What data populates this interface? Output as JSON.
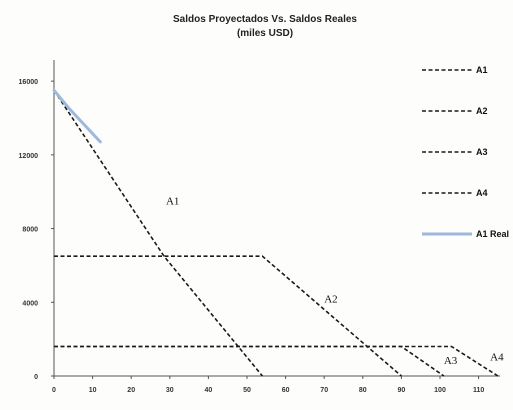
{
  "chart_data": {
    "type": "line",
    "title": "Saldos Proyectados Vs. Saldos Reales",
    "subtitle": "(miles USD)",
    "xlabel": "",
    "ylabel": "",
    "xlim": [
      0,
      120
    ],
    "ylim": [
      0,
      17500
    ],
    "x_ticks": [
      "0",
      "10",
      "20",
      "30",
      "40",
      "50",
      "60",
      "70",
      "80",
      "90",
      "100",
      "110"
    ],
    "y_ticks": [
      {
        "value": 0,
        "label": "0"
      },
      {
        "value": 4000,
        "label": "4000"
      },
      {
        "value": 8000,
        "label": "8000"
      },
      {
        "value": 12000,
        "label": "12000"
      },
      {
        "value": 16000,
        "label": "16000"
      }
    ],
    "grid": false,
    "legend_position": "right",
    "series": [
      {
        "name": "A1",
        "color": "#1a1a1a",
        "style": "dashed",
        "x": [
          0,
          28.5,
          54
        ],
        "y": [
          15500,
          6500,
          0
        ]
      },
      {
        "name": "A2",
        "color": "#1a1a1a",
        "style": "dashed",
        "x": [
          0,
          54,
          90
        ],
        "y": [
          6500,
          6500,
          0
        ]
      },
      {
        "name": "A3",
        "color": "#1a1a1a",
        "style": "dashed",
        "x": [
          0,
          90,
          101
        ],
        "y": [
          1600,
          1600,
          0
        ]
      },
      {
        "name": "A4",
        "color": "#1a1a1a",
        "style": "dashed",
        "x": [
          0,
          103,
          115
        ],
        "y": [
          1600,
          1600,
          0
        ]
      },
      {
        "name": "A1 Real",
        "color": "#9fb8dd",
        "style": "solid",
        "x": [
          0,
          4,
          8,
          12
        ],
        "y": [
          15500,
          14500,
          13600,
          12700
        ]
      }
    ],
    "annotations": [
      {
        "text": "A1",
        "x": 29,
        "y": 9300
      },
      {
        "text": "A2",
        "x": 70,
        "y": 4000
      },
      {
        "text": "A3",
        "x": 101,
        "y": 650
      },
      {
        "text": "A4",
        "x": 113,
        "y": 850
      }
    ]
  }
}
